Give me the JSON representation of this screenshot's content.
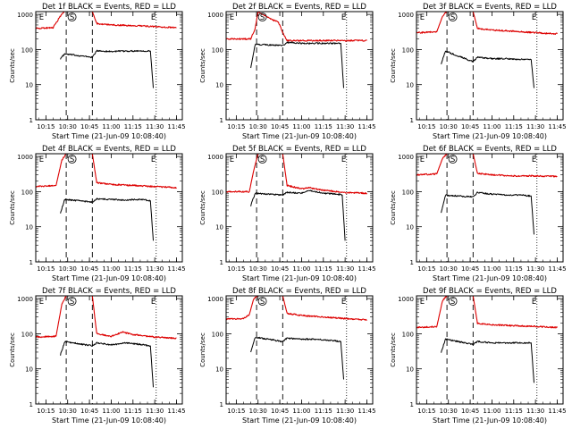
{
  "figure": {
    "panel_title_template": "Det {n}f BLACK = Events, RED = LLD",
    "common_xlabel": "Start Time (21-Jun-09 10:08:40)"
  },
  "chart_data": [
    {
      "id": "det1",
      "detector": "1",
      "type": "line",
      "title": "Det 1f BLACK = Events, RED = LLD",
      "xlabel": "Start Time (21-Jun-09 10:08:40)",
      "ylabel": "Counts/sec",
      "x_ticks": [
        "10:15",
        "10:30",
        "10:45",
        "11:00",
        "11:15",
        "11:30",
        "11:45"
      ],
      "y_ticks": [
        "1",
        "10",
        "100",
        "1000"
      ],
      "yscale": "log",
      "ylim": [
        1,
        1200
      ],
      "markers": [
        {
          "label": "E",
          "time": "10:12"
        },
        {
          "label": "S",
          "time": "10:33"
        },
        {
          "label": "E",
          "time": "11:29"
        }
      ],
      "dashed_lines": [
        "10:29",
        "10:47"
      ],
      "dotted_lines": [
        "11:31"
      ],
      "series": [
        {
          "name": "Events",
          "color": "#000000",
          "time": [
            "10:25",
            "10:28",
            "10:47",
            "10:50",
            "11:00",
            "11:10",
            "11:20",
            "11:27",
            "11:29"
          ],
          "values": [
            55,
            75,
            60,
            92,
            88,
            90,
            92,
            90,
            8
          ]
        },
        {
          "name": "LLD",
          "color": "#dd0000",
          "time": [
            "10:08",
            "10:20",
            "10:25",
            "10:28",
            "10:29",
            "10:47",
            "10:50",
            "11:00",
            "11:15",
            "11:30",
            "11:45"
          ],
          "values": [
            400,
            420,
            900,
            1200,
            1200,
            1200,
            550,
            500,
            480,
            450,
            420
          ]
        }
      ]
    },
    {
      "id": "det2",
      "detector": "2",
      "type": "line",
      "title": "Det 2f BLACK = Events, RED = LLD",
      "xlabel": "Start Time (21-Jun-09 10:08:40)",
      "ylabel": "Counts/sec",
      "x_ticks": [
        "10:15",
        "10:30",
        "10:45",
        "11:00",
        "11:15",
        "11:30",
        "11:45"
      ],
      "y_ticks": [
        "1",
        "10",
        "100",
        "1000"
      ],
      "yscale": "log",
      "ylim": [
        1,
        1200
      ],
      "markers": [
        {
          "label": "E",
          "time": "10:12"
        },
        {
          "label": "S",
          "time": "10:33"
        },
        {
          "label": "E",
          "time": "11:29"
        }
      ],
      "dashed_lines": [
        "10:29",
        "10:47"
      ],
      "dotted_lines": [
        "11:31"
      ],
      "series": [
        {
          "name": "Events",
          "color": "#000000",
          "time": [
            "10:25",
            "10:28",
            "10:47",
            "10:50",
            "11:00",
            "11:10",
            "11:20",
            "11:27",
            "11:29"
          ],
          "values": [
            30,
            140,
            130,
            160,
            150,
            150,
            150,
            150,
            8
          ]
        },
        {
          "name": "LLD",
          "color": "#dd0000",
          "time": [
            "10:08",
            "10:25",
            "10:28",
            "10:30",
            "10:33",
            "10:40",
            "10:44",
            "10:48",
            "10:50",
            "11:00",
            "11:15",
            "11:30",
            "11:45"
          ],
          "values": [
            200,
            200,
            400,
            1200,
            1000,
            700,
            600,
            250,
            180,
            180,
            180,
            180,
            180
          ]
        }
      ]
    },
    {
      "id": "det3",
      "detector": "3",
      "type": "line",
      "title": "Det 3f BLACK = Events, RED = LLD",
      "xlabel": "Start Time (21-Jun-09 10:08:40)",
      "ylabel": "Counts/sec",
      "x_ticks": [
        "10:15",
        "10:30",
        "10:45",
        "11:00",
        "11:15",
        "11:30",
        "11:45"
      ],
      "y_ticks": [
        "1",
        "10",
        "100",
        "1000"
      ],
      "yscale": "log",
      "ylim": [
        1,
        1200
      ],
      "markers": [
        {
          "label": "E",
          "time": "10:12"
        },
        {
          "label": "S",
          "time": "10:33"
        },
        {
          "label": "E",
          "time": "11:29"
        }
      ],
      "dashed_lines": [
        "10:29",
        "10:47"
      ],
      "dotted_lines": [
        "11:31"
      ],
      "series": [
        {
          "name": "Events",
          "color": "#000000",
          "time": [
            "10:25",
            "10:28",
            "10:47",
            "10:50",
            "11:00",
            "11:10",
            "11:20",
            "11:27",
            "11:29"
          ],
          "values": [
            40,
            90,
            45,
            60,
            55,
            55,
            52,
            52,
            8
          ]
        },
        {
          "name": "LLD",
          "color": "#dd0000",
          "time": [
            "10:08",
            "10:22",
            "10:26",
            "10:29",
            "10:47",
            "10:50",
            "11:00",
            "11:15",
            "11:30",
            "11:45"
          ],
          "values": [
            300,
            320,
            900,
            1200,
            1200,
            400,
            360,
            330,
            300,
            280
          ]
        }
      ]
    },
    {
      "id": "det4",
      "detector": "4",
      "type": "line",
      "title": "Det 4f BLACK = Events, RED = LLD",
      "xlabel": "Start Time (21-Jun-09 10:08:40)",
      "ylabel": "Counts/sec",
      "x_ticks": [
        "10:15",
        "10:30",
        "10:45",
        "11:00",
        "11:15",
        "11:30",
        "11:45"
      ],
      "y_ticks": [
        "1",
        "10",
        "100",
        "1000"
      ],
      "yscale": "log",
      "ylim": [
        1,
        1200
      ],
      "markers": [
        {
          "label": "E",
          "time": "10:12"
        },
        {
          "label": "S",
          "time": "10:33"
        },
        {
          "label": "E",
          "time": "11:29"
        }
      ],
      "dashed_lines": [
        "10:29",
        "10:47"
      ],
      "dotted_lines": [
        "11:31"
      ],
      "series": [
        {
          "name": "Events",
          "color": "#000000",
          "time": [
            "10:25",
            "10:28",
            "10:47",
            "10:50",
            "11:00",
            "11:10",
            "11:20",
            "11:27",
            "11:29"
          ],
          "values": [
            25,
            60,
            50,
            62,
            60,
            58,
            60,
            55,
            4
          ]
        },
        {
          "name": "LLD",
          "color": "#dd0000",
          "time": [
            "10:08",
            "10:22",
            "10:26",
            "10:29",
            "10:47",
            "10:50",
            "11:00",
            "11:15",
            "11:30",
            "11:45"
          ],
          "values": [
            140,
            150,
            800,
            1200,
            1200,
            180,
            160,
            150,
            140,
            130
          ]
        }
      ]
    },
    {
      "id": "det5",
      "detector": "5",
      "type": "line",
      "title": "Det 5f BLACK = Events, RED = LLD",
      "xlabel": "Start Time (21-Jun-09 10:08:40)",
      "ylabel": "Counts/sec",
      "x_ticks": [
        "10:15",
        "10:30",
        "10:45",
        "11:00",
        "11:15",
        "11:30",
        "11:45"
      ],
      "y_ticks": [
        "1",
        "10",
        "100",
        "1000"
      ],
      "yscale": "log",
      "ylim": [
        1,
        1200
      ],
      "markers": [
        {
          "label": "E",
          "time": "10:12"
        },
        {
          "label": "S",
          "time": "10:33"
        },
        {
          "label": "E",
          "time": "11:29"
        }
      ],
      "dashed_lines": [
        "10:29",
        "10:47"
      ],
      "dotted_lines": [
        "11:31"
      ],
      "series": [
        {
          "name": "Events",
          "color": "#000000",
          "time": [
            "10:25",
            "10:28",
            "10:47",
            "10:50",
            "11:00",
            "11:05",
            "11:15",
            "11:25",
            "11:28",
            "11:30"
          ],
          "values": [
            40,
            90,
            80,
            95,
            90,
            110,
            90,
            85,
            80,
            4
          ]
        },
        {
          "name": "LLD",
          "color": "#dd0000",
          "time": [
            "10:08",
            "10:24",
            "10:27",
            "10:30",
            "10:47",
            "10:50",
            "11:00",
            "11:05",
            "11:15",
            "11:30",
            "11:45"
          ],
          "values": [
            100,
            100,
            400,
            1200,
            1200,
            150,
            120,
            130,
            110,
            95,
            90
          ]
        }
      ]
    },
    {
      "id": "det6",
      "detector": "6",
      "type": "line",
      "title": "Det 6f BLACK = Events, RED = LLD",
      "xlabel": "Start Time (21-Jun-09 10:08:40)",
      "ylabel": "Counts/sec",
      "x_ticks": [
        "10:15",
        "10:30",
        "10:45",
        "11:00",
        "11:15",
        "11:30",
        "11:45"
      ],
      "y_ticks": [
        "1",
        "10",
        "100",
        "1000"
      ],
      "yscale": "log",
      "ylim": [
        1,
        1200
      ],
      "markers": [
        {
          "label": "E",
          "time": "10:12"
        },
        {
          "label": "S",
          "time": "10:33"
        },
        {
          "label": "E",
          "time": "11:29"
        }
      ],
      "dashed_lines": [
        "10:29",
        "10:47"
      ],
      "dotted_lines": [
        "11:31"
      ],
      "series": [
        {
          "name": "Events",
          "color": "#000000",
          "time": [
            "10:25",
            "10:28",
            "10:47",
            "10:50",
            "11:00",
            "11:10",
            "11:20",
            "11:27",
            "11:29"
          ],
          "values": [
            25,
            80,
            70,
            95,
            85,
            80,
            80,
            75,
            6
          ]
        },
        {
          "name": "LLD",
          "color": "#dd0000",
          "time": [
            "10:08",
            "10:22",
            "10:26",
            "10:29",
            "10:47",
            "10:50",
            "11:00",
            "11:15",
            "11:30",
            "11:45"
          ],
          "values": [
            300,
            320,
            900,
            1200,
            1200,
            330,
            300,
            280,
            280,
            270
          ]
        }
      ]
    },
    {
      "id": "det7",
      "detector": "7",
      "type": "line",
      "title": "Det 7f BLACK = Events, RED = LLD",
      "xlabel": "Start Time (21-Jun-09 10:08:40)",
      "ylabel": "Counts/sec",
      "x_ticks": [
        "10:15",
        "10:30",
        "10:45",
        "11:00",
        "11:15",
        "11:30",
        "11:45"
      ],
      "y_ticks": [
        "1",
        "10",
        "100",
        "1000"
      ],
      "yscale": "log",
      "ylim": [
        1,
        1200
      ],
      "markers": [
        {
          "label": "E",
          "time": "10:12"
        },
        {
          "label": "S",
          "time": "10:33"
        },
        {
          "label": "E",
          "time": "11:29"
        }
      ],
      "dashed_lines": [
        "10:29",
        "10:47"
      ],
      "dotted_lines": [
        "11:31"
      ],
      "series": [
        {
          "name": "Events",
          "color": "#000000",
          "time": [
            "10:25",
            "10:28",
            "10:47",
            "10:50",
            "11:00",
            "11:10",
            "11:20",
            "11:27",
            "11:29"
          ],
          "values": [
            25,
            60,
            45,
            55,
            48,
            55,
            50,
            45,
            3
          ]
        },
        {
          "name": "LLD",
          "color": "#dd0000",
          "time": [
            "10:08",
            "10:22",
            "10:26",
            "10:29",
            "10:47",
            "10:50",
            "11:00",
            "11:08",
            "11:15",
            "11:30",
            "11:45"
          ],
          "values": [
            80,
            85,
            700,
            1200,
            1200,
            100,
            85,
            110,
            95,
            80,
            75
          ]
        }
      ]
    },
    {
      "id": "det8",
      "detector": "8",
      "type": "line",
      "title": "Det 8f BLACK = Events, RED = LLD",
      "xlabel": "Start Time (21-Jun-09 10:08:40)",
      "ylabel": "Counts/sec",
      "x_ticks": [
        "10:15",
        "10:30",
        "10:45",
        "11:00",
        "11:15",
        "11:30",
        "11:45"
      ],
      "y_ticks": [
        "1",
        "10",
        "100",
        "1000"
      ],
      "yscale": "log",
      "ylim": [
        1,
        1200
      ],
      "markers": [
        {
          "label": "E",
          "time": "10:12"
        },
        {
          "label": "S",
          "time": "10:33"
        },
        {
          "label": "E",
          "time": "11:29"
        }
      ],
      "dashed_lines": [
        "10:29",
        "10:47"
      ],
      "dotted_lines": [
        "11:31"
      ],
      "series": [
        {
          "name": "Events",
          "color": "#000000",
          "time": [
            "10:25",
            "10:28",
            "10:47",
            "10:50",
            "11:00",
            "11:10",
            "11:20",
            "11:27",
            "11:29"
          ],
          "values": [
            30,
            80,
            60,
            75,
            70,
            70,
            65,
            60,
            5
          ]
        },
        {
          "name": "LLD",
          "color": "#dd0000",
          "time": [
            "10:08",
            "10:20",
            "10:24",
            "10:27",
            "10:30",
            "10:47",
            "10:50",
            "11:00",
            "11:15",
            "11:30",
            "11:45"
          ],
          "values": [
            260,
            270,
            350,
            1000,
            1200,
            1200,
            380,
            330,
            300,
            270,
            250
          ]
        }
      ]
    },
    {
      "id": "det9",
      "detector": "9",
      "type": "line",
      "title": "Det 9f BLACK = Events, RED = LLD",
      "xlabel": "Start Time (21-Jun-09 10:08:40)",
      "ylabel": "Counts/sec",
      "x_ticks": [
        "10:15",
        "10:30",
        "10:45",
        "11:00",
        "11:15",
        "11:30",
        "11:45"
      ],
      "y_ticks": [
        "1",
        "10",
        "100",
        "1000"
      ],
      "yscale": "log",
      "ylim": [
        1,
        1200
      ],
      "markers": [
        {
          "label": "E",
          "time": "10:12"
        },
        {
          "label": "S",
          "time": "10:33"
        },
        {
          "label": "E",
          "time": "11:29"
        }
      ],
      "dashed_lines": [
        "10:29",
        "10:47"
      ],
      "dotted_lines": [
        "11:31"
      ],
      "series": [
        {
          "name": "Events",
          "color": "#000000",
          "time": [
            "10:25",
            "10:28",
            "10:47",
            "10:50",
            "11:00",
            "11:10",
            "11:20",
            "11:27",
            "11:29"
          ],
          "values": [
            30,
            70,
            50,
            60,
            55,
            55,
            55,
            55,
            4
          ]
        },
        {
          "name": "LLD",
          "color": "#dd0000",
          "time": [
            "10:08",
            "10:22",
            "10:26",
            "10:29",
            "10:47",
            "10:50",
            "11:00",
            "11:15",
            "11:30",
            "11:45"
          ],
          "values": [
            150,
            160,
            900,
            1200,
            1200,
            200,
            180,
            170,
            160,
            150
          ]
        }
      ]
    }
  ]
}
